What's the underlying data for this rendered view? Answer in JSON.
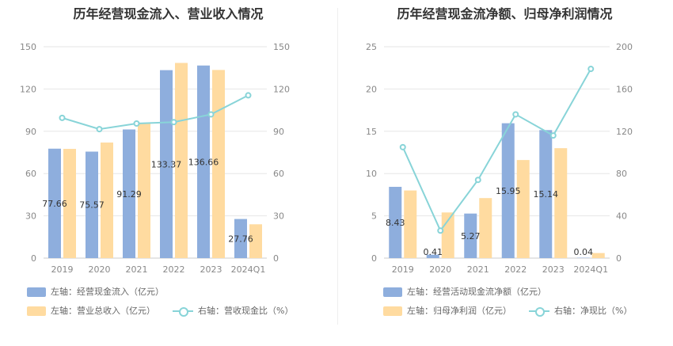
{
  "colors": {
    "bar1": "#8eaedd",
    "bar2": "#ffdba0",
    "line": "#88d4d8",
    "grid": "#e6e6e6"
  },
  "chart_data": [
    {
      "type": "bar",
      "title": "历年经营现金流入、营业收入情况",
      "categories": [
        "2019",
        "2020",
        "2021",
        "2022",
        "2023",
        "2024Q1"
      ],
      "y_left": {
        "ticks": [
          "0",
          "30",
          "60",
          "90",
          "120",
          "150"
        ],
        "lim": [
          0,
          150
        ]
      },
      "y_right": {
        "ticks": [
          "0",
          "30",
          "60",
          "90",
          "120",
          "150"
        ],
        "lim": [
          0,
          150
        ]
      },
      "series": [
        {
          "name": "左轴：经营现金流入（亿元）",
          "kind": "bar",
          "axis": "left",
          "values": [
            77.66,
            75.57,
            91.29,
            133.37,
            136.66,
            27.76
          ],
          "labels": [
            "77.66",
            "75.57",
            "91.29",
            "133.37",
            "136.66",
            "27.76"
          ]
        },
        {
          "name": "左轴：营业总收入（亿元）",
          "kind": "bar",
          "axis": "left",
          "values": [
            77.5,
            82.0,
            95.5,
            138.5,
            133.5,
            24.0
          ]
        },
        {
          "name": "右轴：营收现金比（%）",
          "kind": "line",
          "axis": "right",
          "values": [
            99.5,
            91.5,
            95.5,
            96.5,
            102.0,
            115.5
          ]
        }
      ]
    },
    {
      "type": "bar",
      "title": "历年经营现金流净额、归母净利润情况",
      "categories": [
        "2019",
        "2020",
        "2021",
        "2022",
        "2023",
        "2024Q1"
      ],
      "y_left": {
        "ticks": [
          "0",
          "5",
          "10",
          "15",
          "20",
          "25"
        ],
        "lim": [
          0,
          25
        ]
      },
      "y_right": {
        "ticks": [
          "0",
          "40",
          "80",
          "120",
          "160",
          "200"
        ],
        "lim": [
          0,
          200
        ]
      },
      "series": [
        {
          "name": "左轴：经营活动现金流净额（亿元）",
          "kind": "bar",
          "axis": "left",
          "values": [
            8.43,
            0.41,
            5.27,
            15.95,
            15.14,
            0.04
          ],
          "labels": [
            "8.43",
            "0.41",
            "5.27",
            "15.95",
            "15.14",
            "0.04"
          ]
        },
        {
          "name": "左轴：归母净利润（亿元）",
          "kind": "bar",
          "axis": "left",
          "values": [
            8.0,
            5.4,
            7.1,
            11.6,
            13.0,
            0.6
          ]
        },
        {
          "name": "右轴：净现比（%）",
          "kind": "line",
          "axis": "right",
          "values": [
            105,
            26,
            74,
            136,
            116,
            179
          ]
        }
      ]
    }
  ]
}
